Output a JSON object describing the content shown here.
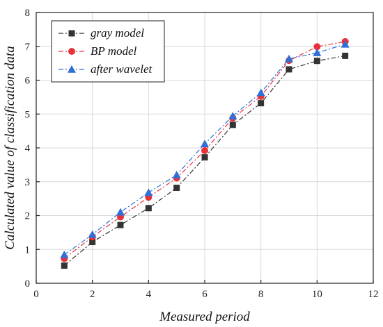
{
  "chart_data": {
    "type": "line",
    "title": "",
    "xlabel": "Measured period",
    "ylabel": "Calculated value of classification data",
    "xlim": [
      0,
      12
    ],
    "ylim": [
      0,
      8
    ],
    "xticks": [
      0,
      2,
      4,
      6,
      8,
      10,
      12
    ],
    "yticks": [
      0,
      1,
      2,
      3,
      4,
      5,
      6,
      7,
      8
    ],
    "grid": true,
    "legend_position": "top-left",
    "x": [
      1,
      2,
      3,
      4,
      5,
      6,
      7,
      8,
      9,
      10,
      11
    ],
    "series": [
      {
        "name": "gray model",
        "marker": "square",
        "color": "#333333",
        "values": [
          0.52,
          1.22,
          1.72,
          2.22,
          2.82,
          3.72,
          4.68,
          5.32,
          6.32,
          6.57,
          6.72
        ]
      },
      {
        "name": "BP model",
        "marker": "circle",
        "color": "#e8323a",
        "values": [
          0.73,
          1.37,
          1.96,
          2.54,
          3.11,
          3.92,
          4.88,
          5.52,
          6.58,
          6.99,
          7.14
        ]
      },
      {
        "name": "after wavelet",
        "marker": "triangle",
        "color": "#2f6fd6",
        "values": [
          0.84,
          1.44,
          2.1,
          2.68,
          3.2,
          4.12,
          4.94,
          5.63,
          6.63,
          6.81,
          7.06
        ]
      }
    ]
  }
}
